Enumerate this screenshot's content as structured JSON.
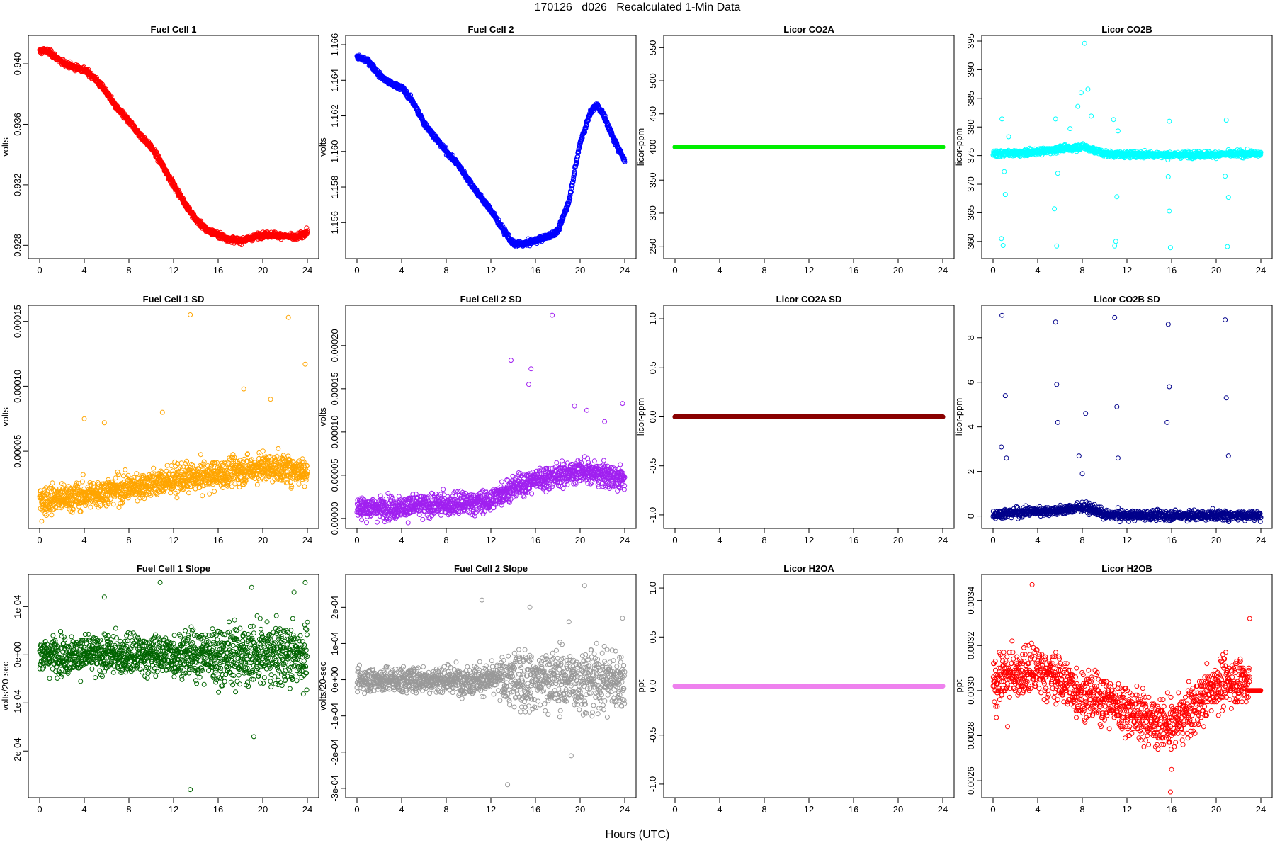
{
  "figure": {
    "title": "170126   d026   Recalculated 1-Min Data",
    "xlabel": "Hours (UTC)"
  },
  "chart_data": [
    {
      "type": "scatter",
      "title": "Fuel Cell 1",
      "ylabel": "volts",
      "color": "#ff0000",
      "xlim": [
        0,
        24
      ],
      "ylim": [
        0.9275,
        0.9415
      ],
      "xticks": [
        "0",
        "4",
        "8",
        "12",
        "16",
        "20",
        "24"
      ],
      "yticks": [
        0.928,
        0.932,
        0.936,
        0.94
      ],
      "yticklabels": [
        "0.928",
        "0.932",
        "0.936",
        "0.940"
      ],
      "series": [
        {
          "x": [
            0,
            0.5,
            1,
            2,
            3,
            4,
            5,
            6,
            7,
            8,
            9,
            10,
            11,
            12,
            13,
            14,
            15,
            16,
            17,
            18,
            19,
            20,
            21,
            22,
            23,
            24
          ],
          "y": [
            0.9408,
            0.9409,
            0.9407,
            0.9401,
            0.9398,
            0.9396,
            0.939,
            0.9381,
            0.937,
            0.9362,
            0.9353,
            0.9345,
            0.9333,
            0.932,
            0.9308,
            0.9297,
            0.929,
            0.9287,
            0.9284,
            0.9283,
            0.9285,
            0.9287,
            0.9287,
            0.9286,
            0.9285,
            0.9289
          ],
          "noise": 0.00015,
          "density": 55
        }
      ]
    },
    {
      "type": "scatter",
      "title": "Fuel Cell 2",
      "ylabel": "volts",
      "color": "#0000ff",
      "xlim": [
        0,
        24
      ],
      "ylim": [
        1.1543,
        1.1662
      ],
      "xticks": [
        "0",
        "4",
        "8",
        "12",
        "16",
        "20",
        "24"
      ],
      "yticks": [
        1.156,
        1.158,
        1.16,
        1.162,
        1.164,
        1.166
      ],
      "yticklabels": [
        "1.156",
        "1.158",
        "1.160",
        "1.162",
        "1.164",
        "1.166"
      ],
      "series": [
        {
          "x": [
            0,
            0.5,
            1,
            2,
            3,
            4,
            5,
            6,
            7,
            8,
            9,
            10,
            11,
            12,
            13,
            14,
            15,
            16,
            17,
            18,
            19,
            20,
            21,
            21.5,
            22,
            23,
            24
          ],
          "y": [
            1.1653,
            1.1652,
            1.1651,
            1.1643,
            1.1638,
            1.1636,
            1.1628,
            1.1616,
            1.1608,
            1.16,
            1.1593,
            1.1584,
            1.1575,
            1.1567,
            1.1557,
            1.1548,
            1.1548,
            1.155,
            1.1552,
            1.1555,
            1.1572,
            1.1605,
            1.1623,
            1.1626,
            1.1622,
            1.1607,
            1.1595
          ],
          "noise": 0.00012,
          "density": 55
        }
      ]
    },
    {
      "type": "scatter",
      "title": "Licor CO2A",
      "ylabel": "licor-ppm",
      "color": "#00ee00",
      "xlim": [
        0,
        24
      ],
      "ylim": [
        240,
        560
      ],
      "xticks": [
        "0",
        "4",
        "8",
        "12",
        "16",
        "20",
        "24"
      ],
      "yticks": [
        250,
        300,
        350,
        400,
        450,
        500,
        550
      ],
      "yticklabels": [
        "250",
        "300",
        "350",
        "400",
        "450",
        "500",
        "550"
      ],
      "series": [
        {
          "x": [
            0,
            24
          ],
          "y": [
            400,
            400
          ],
          "noise": 0,
          "density": 120
        }
      ]
    },
    {
      "type": "scatter",
      "title": "Licor CO2B",
      "ylabel": "licor-ppm",
      "color": "#00ffff",
      "xlim": [
        0,
        24
      ],
      "ylim": [
        358,
        395
      ],
      "xticks": [
        "0",
        "4",
        "8",
        "12",
        "16",
        "20",
        "24"
      ],
      "yticks": [
        360,
        365,
        370,
        375,
        380,
        385,
        390,
        395
      ],
      "yticklabels": [
        "360",
        "365",
        "370",
        "375",
        "380",
        "385",
        "390",
        "395"
      ],
      "series": [
        {
          "x": [
            0,
            1,
            2,
            3,
            4,
            5,
            6,
            7,
            8,
            9,
            10,
            11,
            12,
            14,
            16,
            18,
            20,
            22,
            24
          ],
          "y": [
            375.3,
            375.4,
            375.4,
            375.5,
            375.7,
            375.9,
            376.2,
            376.3,
            376.6,
            376.0,
            375.3,
            375.2,
            375.2,
            375.2,
            375.1,
            375.2,
            375.2,
            375.3,
            375.3
          ],
          "noise": 0.45,
          "density": 45
        }
      ],
      "outliers": {
        "x": [
          0.8,
          0.9,
          1.1,
          1.0,
          0.75,
          1.4,
          5.6,
          5.7,
          5.8,
          5.5,
          6.9,
          7.6,
          7.9,
          8.2,
          8.5,
          8.8,
          10.8,
          10.9,
          11.1,
          11.2,
          11.0,
          15.8,
          15.9,
          15.7,
          15.8,
          20.9,
          21.0,
          21.1,
          20.8
        ],
        "y": [
          381.4,
          359.3,
          368.2,
          372.2,
          360.5,
          378.3,
          381.4,
          359.2,
          371.9,
          365.7,
          379.7,
          383.6,
          386.0,
          394.6,
          386.6,
          381.9,
          381.3,
          359.2,
          367.8,
          379.3,
          360.0,
          381.0,
          358.9,
          371.3,
          365.3,
          381.2,
          359.1,
          367.7,
          371.4
        ]
      }
    },
    {
      "type": "scatter",
      "title": "Fuel Cell 1 SD",
      "ylabel": "volts",
      "color": "#ffa500",
      "xlim": [
        0,
        24
      ],
      "ylim": [
        -5e-06,
        0.000158
      ],
      "xticks": [
        "0",
        "4",
        "8",
        "12",
        "16",
        "20",
        "24"
      ],
      "yticks": [
        5e-05,
        0.0001,
        0.00015
      ],
      "yticklabels": [
        "0.00005",
        "0.00010",
        "0.00015"
      ],
      "series": [
        {
          "x": [
            0,
            4,
            8,
            12,
            16,
            20,
            24
          ],
          "y": [
            1.2e-05,
            1.6e-05,
            2.2e-05,
            2.8e-05,
            3.2e-05,
            3.8e-05,
            3.5e-05
          ],
          "noise": 9e-06,
          "density": 55
        }
      ],
      "outliers": {
        "x": [
          4,
          5.8,
          11,
          13.5,
          22.3,
          23.8,
          18.3,
          20.7
        ],
        "y": [
          7.5e-05,
          7.2e-05,
          8e-05,
          0.000155,
          0.000153,
          0.000117,
          9.8e-05,
          9e-05
        ]
      }
    },
    {
      "type": "scatter",
      "title": "Fuel Cell 2 SD",
      "ylabel": "volts",
      "color": "#a020f0",
      "xlim": [
        0,
        24
      ],
      "ylim": [
        -5e-06,
        0.00024
      ],
      "xticks": [
        "0",
        "4",
        "8",
        "12",
        "16",
        "20",
        "24"
      ],
      "yticks": [
        0,
        5e-05,
        0.0001,
        0.00015,
        0.0002
      ],
      "yticklabels": [
        "0.00000",
        "0.00005",
        "0.00010",
        "0.00015",
        "0.00020"
      ],
      "series": [
        {
          "x": [
            0,
            4,
            8,
            12,
            13,
            16,
            20,
            24
          ],
          "y": [
            1.2e-05,
            1.3e-05,
            1.6e-05,
            2e-05,
            3e-05,
            4.5e-05,
            5.5e-05,
            4.5e-05
          ],
          "noise": 1.1e-05,
          "density": 55
        }
      ],
      "outliers": {
        "x": [
          13.8,
          15.4,
          15.6,
          17.5,
          19.5,
          20.6,
          22.2,
          23.8
        ],
        "y": [
          0.000183,
          0.000155,
          0.000173,
          0.000235,
          0.00013,
          0.000125,
          0.000112,
          0.000133
        ]
      }
    },
    {
      "type": "scatter",
      "title": "Licor CO2A SD",
      "ylabel": "licor-ppm",
      "color": "#8b0000",
      "xlim": [
        0,
        24
      ],
      "ylim": [
        -1.08,
        1.08
      ],
      "xticks": [
        "0",
        "4",
        "8",
        "12",
        "16",
        "20",
        "24"
      ],
      "yticks": [
        -1.0,
        -0.5,
        0.0,
        0.5,
        1.0
      ],
      "yticklabels": [
        "-1.0",
        "-0.5",
        "0.0",
        "0.5",
        "1.0"
      ],
      "series": [
        {
          "x": [
            0,
            24
          ],
          "y": [
            0,
            0
          ],
          "noise": 0,
          "density": 120
        }
      ]
    },
    {
      "type": "scatter",
      "title": "Licor CO2B SD",
      "ylabel": "licor-ppm",
      "color": "#00008b",
      "xlim": [
        0,
        24
      ],
      "ylim": [
        -0.3,
        9.2
      ],
      "xticks": [
        "0",
        "4",
        "8",
        "12",
        "16",
        "20",
        "24"
      ],
      "yticks": [
        0,
        2,
        4,
        6,
        8
      ],
      "yticklabels": [
        "0",
        "2",
        "4",
        "6",
        "8"
      ],
      "series": [
        {
          "x": [
            0,
            2,
            4,
            6,
            8,
            9,
            10,
            11,
            14,
            18,
            22,
            24
          ],
          "y": [
            0.08,
            0.15,
            0.22,
            0.25,
            0.4,
            0.3,
            0.06,
            0.04,
            0.03,
            0.03,
            0.04,
            0.03
          ],
          "noise": 0.18,
          "density": 45
        }
      ],
      "outliers": {
        "x": [
          0.8,
          0.75,
          1.1,
          1.2,
          5.6,
          5.7,
          5.8,
          7.7,
          8.3,
          8.0,
          10.9,
          11.1,
          11.2,
          15.7,
          15.8,
          15.6,
          20.8,
          20.9,
          21.1
        ],
        "y": [
          9.0,
          3.1,
          5.4,
          2.6,
          8.7,
          5.9,
          4.2,
          2.7,
          4.6,
          1.9,
          8.9,
          4.9,
          2.6,
          8.6,
          5.8,
          4.2,
          8.8,
          5.3,
          2.7
        ]
      }
    },
    {
      "type": "scatter",
      "title": "Fuel Cell 1 Slope",
      "ylabel": "volts/20-sec",
      "color": "#006400",
      "xlim": [
        0,
        24
      ],
      "ylim": [
        -0.000285,
        0.000155
      ],
      "xticks": [
        "0",
        "4",
        "8",
        "12",
        "16",
        "20",
        "24"
      ],
      "yticks": [
        -0.0002,
        -0.0001,
        0,
        0.0001
      ],
      "yticklabels": [
        "-2e-04",
        "-1e-04",
        "0e+00",
        "1e-04"
      ],
      "series": [
        {
          "x": [
            0,
            24
          ],
          "y": [
            0,
            0
          ],
          "noise": 3.2e-05,
          "spread": [
            [
              0,
              1
            ],
            [
              12,
              1.1
            ],
            [
              16,
              1.6
            ],
            [
              24,
              1.6
            ]
          ],
          "density": 55
        }
      ],
      "outliers": {
        "x": [
          5.8,
          10.8,
          13.5,
          19,
          22.8,
          23.8,
          19.2
        ],
        "y": [
          0.00012,
          0.00015,
          -0.00028,
          0.00014,
          0.00013,
          0.00015,
          -0.00017
        ]
      }
    },
    {
      "type": "scatter",
      "title": "Fuel Cell 2 Slope",
      "ylabel": "volts/20-sec",
      "color": "#999999",
      "xlim": [
        0,
        24
      ],
      "ylim": [
        -0.00031,
        0.000275
      ],
      "xticks": [
        "0",
        "4",
        "8",
        "12",
        "16",
        "20",
        "24"
      ],
      "yticks": [
        -0.0003,
        -0.0002,
        -0.0001,
        0,
        0.0001,
        0.0002
      ],
      "yticklabels": [
        "-3e-04",
        "-2e-04",
        "-1e-04",
        "0e+00",
        "1e-04",
        "2e-04"
      ],
      "series": [
        {
          "x": [
            0,
            24
          ],
          "y": [
            0,
            0
          ],
          "noise": 2.8e-05,
          "spread": [
            [
              0,
              1
            ],
            [
              12,
              1.2
            ],
            [
              14,
              2.4
            ],
            [
              24,
              2.6
            ]
          ],
          "density": 55
        }
      ],
      "outliers": {
        "x": [
          11.2,
          13.5,
          15.5,
          19.2,
          20.4,
          23.8,
          19.0
        ],
        "y": [
          0.00022,
          -0.00029,
          0.0002,
          -0.00021,
          0.00026,
          0.00017,
          0.00016
        ]
      }
    },
    {
      "type": "scatter",
      "title": "Licor H2OA",
      "ylabel": "ppt",
      "color": "#ee82ee",
      "xlim": [
        0,
        24
      ],
      "ylim": [
        -1.08,
        1.08
      ],
      "xticks": [
        "0",
        "4",
        "8",
        "12",
        "16",
        "20",
        "24"
      ],
      "yticks": [
        -1.0,
        -0.5,
        0.0,
        0.5,
        1.0
      ],
      "yticklabels": [
        "-1.0",
        "-0.5",
        "0.0",
        "0.5",
        "1.0"
      ],
      "series": [
        {
          "x": [
            0,
            24
          ],
          "y": [
            0,
            0
          ],
          "noise": 0,
          "density": 120
        }
      ]
    },
    {
      "type": "scatter",
      "title": "Licor H2OB",
      "ylabel": "ppt",
      "color": "#ff0000",
      "xlim": [
        0,
        24
      ],
      "ylim": [
        0.00255,
        0.00349
      ],
      "xticks": [
        "0",
        "4",
        "8",
        "12",
        "16",
        "20",
        "24"
      ],
      "yticks": [
        0.0026,
        0.0028,
        0.003,
        0.0032,
        0.0034
      ],
      "yticklabels": [
        "0.0026",
        "0.0028",
        "0.0030",
        "0.0032",
        "0.0034"
      ],
      "series": [
        {
          "x": [
            0,
            2,
            4,
            6,
            8,
            10,
            12,
            14,
            16,
            18,
            20,
            22,
            23
          ],
          "y": [
            0.00304,
            0.00308,
            0.00309,
            0.00305,
            0.00298,
            0.00296,
            0.00292,
            0.00287,
            0.00284,
            0.00292,
            0.00303,
            0.00305,
            0.00303
          ],
          "noise": 9e-05,
          "quant": 1e-05,
          "density": 50
        }
      ],
      "tail": {
        "x": [
          23,
          24
        ],
        "y": 0.003
      },
      "outliers": {
        "x": [
          3.5,
          15.9,
          16,
          0.3,
          1.3,
          23
        ],
        "y": [
          0.00347,
          0.00255,
          0.00265,
          0.00288,
          0.00284,
          0.00332
        ]
      }
    }
  ]
}
